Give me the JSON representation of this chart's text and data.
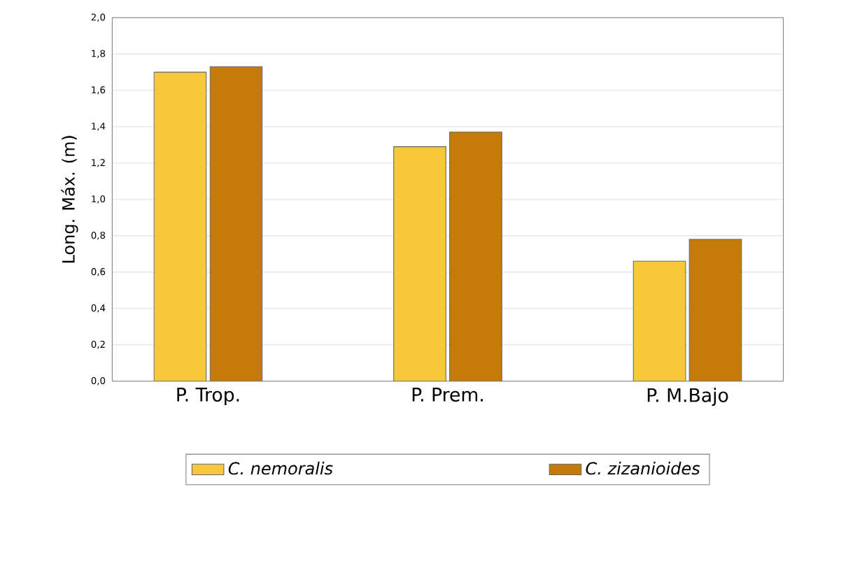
{
  "chart_data": {
    "type": "bar",
    "ylabel": "Long. Máx. (m)",
    "categories": [
      "P. Trop.",
      "P. Prem.",
      "P. M.Bajo"
    ],
    "series": [
      {
        "name": "C. nemoralis",
        "color": "#f7c83a",
        "values": [
          1.7,
          1.29,
          0.66
        ]
      },
      {
        "name": "C. zizanioides",
        "color": "#c47a06",
        "values": [
          1.73,
          1.37,
          0.78
        ]
      }
    ],
    "ylim": [
      0,
      2.0
    ],
    "yticks": [
      {
        "value": 0,
        "label": "0,0"
      },
      {
        "value": 0.2,
        "label": "0,2"
      },
      {
        "value": 0.4,
        "label": "0,4"
      },
      {
        "value": 0.6,
        "label": "0,6"
      },
      {
        "value": 0.8,
        "label": "0,8"
      },
      {
        "value": 1.0,
        "label": "1,0"
      },
      {
        "value": 1.2,
        "label": "1,2"
      },
      {
        "value": 1.4,
        "label": "1,4"
      },
      {
        "value": 1.6,
        "label": "1,6"
      },
      {
        "value": 1.8,
        "label": "1,8"
      },
      {
        "value": 2.0,
        "label": "2,0"
      }
    ],
    "grid": "y",
    "legend": "bottom"
  }
}
